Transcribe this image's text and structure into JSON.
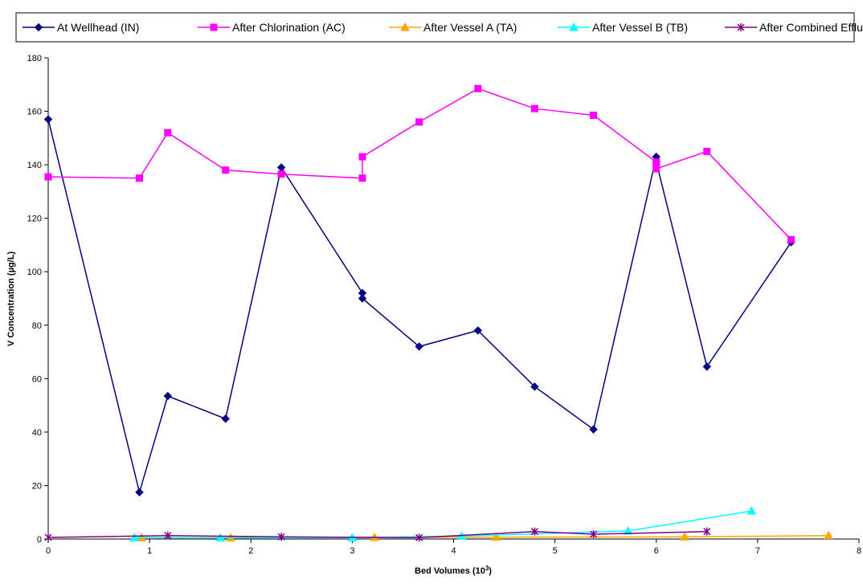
{
  "chart_data": {
    "type": "line",
    "title": "",
    "xlabel_main": "Bed Volumes (10",
    "xlabel_sup": "3",
    "xlabel_end": ")",
    "ylabel": "V Concentration (µg/L)",
    "xlim": [
      0,
      8
    ],
    "ylim": [
      0,
      180
    ],
    "xticks": [
      "0",
      "1",
      "2",
      "3",
      "4",
      "5",
      "6",
      "7",
      "8"
    ],
    "yticks": [
      "0",
      "20",
      "40",
      "60",
      "80",
      "100",
      "120",
      "140",
      "160",
      "180"
    ],
    "grid": false,
    "legend_position": "top",
    "series": [
      {
        "name": "At Wellhead (IN)",
        "color": "#000080",
        "marker": "diamond",
        "x": [
          0,
          0.9,
          1.18,
          1.75,
          2.3,
          3.1,
          3.1,
          3.66,
          4.24,
          4.8,
          5.38,
          6.0,
          6.0,
          6.5,
          7.33
        ],
        "y": [
          157,
          17.5,
          53.5,
          45,
          139,
          92,
          90,
          72,
          78,
          57,
          41,
          143,
          141,
          64.5,
          111
        ]
      },
      {
        "name": "After Chlorination (AC)",
        "color": "#ff00ff",
        "marker": "square",
        "x": [
          0,
          0.9,
          1.18,
          1.75,
          2.3,
          3.1,
          3.1,
          3.66,
          4.24,
          4.8,
          5.38,
          6.0,
          6.0,
          6.5,
          7.33
        ],
        "y": [
          135.5,
          135,
          152,
          138,
          136.5,
          135,
          143,
          156,
          168.5,
          161,
          158.5,
          141,
          138.5,
          145,
          112
        ]
      },
      {
        "name": "After Vessel A (TA)",
        "color": "#ffa500",
        "marker": "triangle",
        "x": [
          0.92,
          1.8,
          3.22,
          4.42,
          6.28,
          7.7
        ],
        "y": [
          0.5,
          0.5,
          0.6,
          0.7,
          0.8,
          1.3
        ]
      },
      {
        "name": "After Vessel B (TB)",
        "color": "#00ffff",
        "marker": "triangle",
        "x": [
          0.85,
          1.7,
          3.0,
          4.08,
          5.72,
          6.94
        ],
        "y": [
          0.5,
          0.4,
          0.5,
          1.1,
          3.0,
          10.5
        ]
      },
      {
        "name": "After Combined Effluent (TT)",
        "color": "#800080",
        "marker": "star",
        "x": [
          0,
          1.18,
          2.3,
          3.66,
          4.8,
          5.38,
          6.5
        ],
        "y": [
          0.6,
          1.3,
          0.8,
          0.5,
          2.8,
          1.8,
          2.8
        ]
      }
    ]
  }
}
